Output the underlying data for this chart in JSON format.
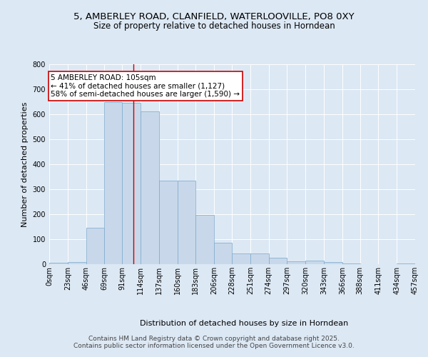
{
  "title_line1": "5, AMBERLEY ROAD, CLANFIELD, WATERLOOVILLE, PO8 0XY",
  "title_line2": "Size of property relative to detached houses in Horndean",
  "xlabel": "Distribution of detached houses by size in Horndean",
  "ylabel": "Number of detached properties",
  "bar_edges": [
    0,
    23,
    46,
    69,
    91,
    114,
    137,
    160,
    183,
    206,
    228,
    251,
    274,
    297,
    320,
    343,
    366,
    388,
    411,
    434,
    457
  ],
  "bar_heights": [
    5,
    8,
    145,
    648,
    645,
    610,
    335,
    335,
    198,
    85,
    43,
    43,
    27,
    12,
    14,
    9,
    4,
    0,
    0,
    3
  ],
  "bar_color": "#c8d8ea",
  "bar_edgecolor": "#7aa8cc",
  "property_size": 105,
  "vline_color": "#cc0000",
  "annotation_text": "5 AMBERLEY ROAD: 105sqm\n← 41% of detached houses are smaller (1,127)\n58% of semi-detached houses are larger (1,590) →",
  "annotation_box_color": "#ffffff",
  "annotation_box_edgecolor": "#cc0000",
  "ylim": [
    0,
    800
  ],
  "yticks": [
    0,
    100,
    200,
    300,
    400,
    500,
    600,
    700,
    800
  ],
  "tick_labels": [
    "0sqm",
    "23sqm",
    "46sqm",
    "69sqm",
    "91sqm",
    "114sqm",
    "137sqm",
    "160sqm",
    "183sqm",
    "206sqm",
    "228sqm",
    "251sqm",
    "274sqm",
    "297sqm",
    "320sqm",
    "343sqm",
    "366sqm",
    "388sqm",
    "411sqm",
    "434sqm",
    "457sqm"
  ],
  "footer_text": "Contains HM Land Registry data © Crown copyright and database right 2025.\nContains public sector information licensed under the Open Government Licence v3.0.",
  "background_color": "#dce8f4",
  "plot_background": "#dce8f4",
  "grid_color": "#ffffff",
  "title_fontsize": 9.5,
  "subtitle_fontsize": 8.5,
  "axis_label_fontsize": 8,
  "tick_fontsize": 7,
  "footer_fontsize": 6.5,
  "annotation_fontsize": 7.5
}
